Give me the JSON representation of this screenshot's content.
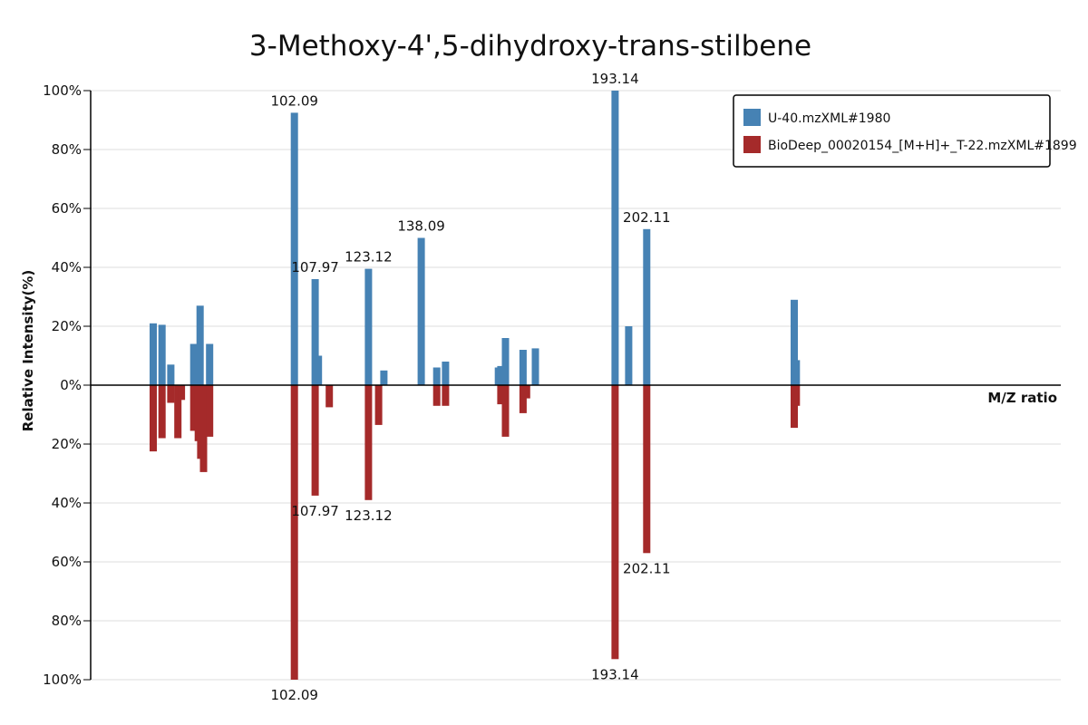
{
  "chart_data": {
    "type": "bar",
    "title": "3-Methoxy-4',5-dihydroxy-trans-stilbene",
    "xlabel": "M/Z ratio",
    "ylabel": "Relative Intensity(%)",
    "yticks_top": [
      "100%",
      "80%",
      "60%",
      "40%",
      "20%",
      "0%"
    ],
    "yticks_bottom": [
      "20%",
      "40%",
      "60%",
      "80%",
      "100%"
    ],
    "ylim": [
      -100,
      100
    ],
    "grid": true,
    "legend_position": "top-right",
    "series": [
      {
        "name": "U-40.mzXML#1980",
        "color": "#4682b4",
        "direction": "up",
        "peaks": [
          {
            "mz": 62.0,
            "intensity": 21
          },
          {
            "mz": 64.5,
            "intensity": 20.5
          },
          {
            "mz": 67.0,
            "intensity": 7
          },
          {
            "mz": 73.5,
            "intensity": 14
          },
          {
            "mz": 74.8,
            "intensity": 10
          },
          {
            "mz": 75.3,
            "intensity": 27
          },
          {
            "mz": 78.0,
            "intensity": 14
          },
          {
            "mz": 102.09,
            "intensity": 92.5,
            "label": "102.09"
          },
          {
            "mz": 107.97,
            "intensity": 36,
            "label": "107.97"
          },
          {
            "mz": 108.9,
            "intensity": 10
          },
          {
            "mz": 123.12,
            "intensity": 39.5,
            "label": "123.12"
          },
          {
            "mz": 127.5,
            "intensity": 5
          },
          {
            "mz": 138.09,
            "intensity": 50,
            "label": "138.09"
          },
          {
            "mz": 142.5,
            "intensity": 6
          },
          {
            "mz": 145.0,
            "intensity": 8
          },
          {
            "mz": 160.0,
            "intensity": 6
          },
          {
            "mz": 160.7,
            "intensity": 6.5
          },
          {
            "mz": 162.0,
            "intensity": 16
          },
          {
            "mz": 167.0,
            "intensity": 12
          },
          {
            "mz": 170.5,
            "intensity": 12.5
          },
          {
            "mz": 193.14,
            "intensity": 100,
            "label": "193.14"
          },
          {
            "mz": 197.0,
            "intensity": 20
          },
          {
            "mz": 202.11,
            "intensity": 53,
            "label": "202.11"
          },
          {
            "mz": 244.0,
            "intensity": 29
          },
          {
            "mz": 244.6,
            "intensity": 8.5
          }
        ]
      },
      {
        "name": "BioDeep_00020154_[M+H]+_T-22.mzXML#1899",
        "color": "#a52a2a",
        "direction": "down",
        "peaks": [
          {
            "mz": 62.0,
            "intensity": 22.5
          },
          {
            "mz": 64.5,
            "intensity": 18
          },
          {
            "mz": 67.0,
            "intensity": 6
          },
          {
            "mz": 69.0,
            "intensity": 18
          },
          {
            "mz": 70.0,
            "intensity": 5
          },
          {
            "mz": 73.5,
            "intensity": 15.5
          },
          {
            "mz": 74.8,
            "intensity": 19
          },
          {
            "mz": 75.5,
            "intensity": 25
          },
          {
            "mz": 76.3,
            "intensity": 29.5
          },
          {
            "mz": 78.0,
            "intensity": 17.5
          },
          {
            "mz": 102.09,
            "intensity": 100,
            "label": "102.09"
          },
          {
            "mz": 107.97,
            "intensity": 37.5,
            "label": "107.97"
          },
          {
            "mz": 112.0,
            "intensity": 7.5
          },
          {
            "mz": 123.12,
            "intensity": 39,
            "label": "123.12"
          },
          {
            "mz": 126.0,
            "intensity": 13.5
          },
          {
            "mz": 142.5,
            "intensity": 7
          },
          {
            "mz": 145.0,
            "intensity": 7
          },
          {
            "mz": 160.7,
            "intensity": 6.5
          },
          {
            "mz": 162.0,
            "intensity": 17.5
          },
          {
            "mz": 167.0,
            "intensity": 9.5
          },
          {
            "mz": 168.0,
            "intensity": 4.5
          },
          {
            "mz": 193.14,
            "intensity": 93,
            "label": "193.14"
          },
          {
            "mz": 202.11,
            "intensity": 57,
            "label": "202.11"
          },
          {
            "mz": 244.0,
            "intensity": 14.5
          },
          {
            "mz": 244.6,
            "intensity": 7
          }
        ]
      }
    ]
  }
}
